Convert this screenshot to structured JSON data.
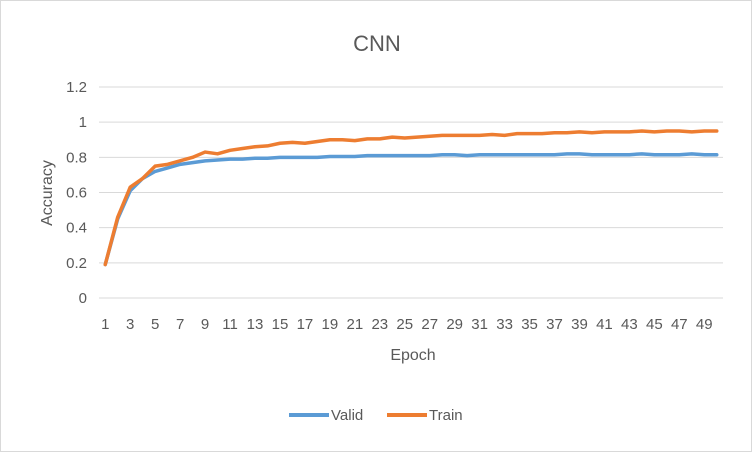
{
  "chart_data": {
    "type": "line",
    "title": "CNN",
    "xlabel": "Epoch",
    "ylabel": "Accuracy",
    "ylim": [
      0,
      1.2
    ],
    "yticks": [
      "0",
      "0.2",
      "0.4",
      "0.6",
      "0.8",
      "1",
      "1.2"
    ],
    "grid": "horizontal",
    "legend_position": "bottom",
    "x": [
      1,
      2,
      3,
      4,
      5,
      6,
      7,
      8,
      9,
      10,
      11,
      12,
      13,
      14,
      15,
      16,
      17,
      18,
      19,
      20,
      21,
      22,
      23,
      24,
      25,
      26,
      27,
      28,
      29,
      30,
      31,
      32,
      33,
      34,
      35,
      36,
      37,
      38,
      39,
      40,
      41,
      42,
      43,
      44,
      45,
      46,
      47,
      48,
      49,
      50
    ],
    "x_tick_labels": [
      "1",
      "3",
      "5",
      "7",
      "9",
      "11",
      "13",
      "15",
      "17",
      "19",
      "21",
      "23",
      "25",
      "27",
      "29",
      "31",
      "33",
      "35",
      "37",
      "39",
      "41",
      "43",
      "45",
      "47",
      "49"
    ],
    "series": [
      {
        "name": "Valid",
        "color": "#5b9bd5",
        "values": [
          0.19,
          0.45,
          0.61,
          0.68,
          0.72,
          0.74,
          0.76,
          0.77,
          0.78,
          0.785,
          0.79,
          0.79,
          0.795,
          0.795,
          0.8,
          0.8,
          0.8,
          0.8,
          0.805,
          0.805,
          0.805,
          0.81,
          0.81,
          0.81,
          0.81,
          0.81,
          0.81,
          0.815,
          0.815,
          0.81,
          0.815,
          0.815,
          0.815,
          0.815,
          0.815,
          0.815,
          0.815,
          0.82,
          0.82,
          0.815,
          0.815,
          0.815,
          0.815,
          0.82,
          0.815,
          0.815,
          0.815,
          0.82,
          0.815,
          0.815
        ]
      },
      {
        "name": "Train",
        "color": "#ed7d31",
        "values": [
          0.19,
          0.46,
          0.63,
          0.68,
          0.75,
          0.76,
          0.78,
          0.8,
          0.83,
          0.82,
          0.84,
          0.85,
          0.86,
          0.865,
          0.88,
          0.885,
          0.88,
          0.89,
          0.9,
          0.9,
          0.895,
          0.905,
          0.905,
          0.915,
          0.91,
          0.915,
          0.92,
          0.925,
          0.925,
          0.925,
          0.925,
          0.93,
          0.925,
          0.935,
          0.935,
          0.935,
          0.94,
          0.94,
          0.945,
          0.94,
          0.945,
          0.945,
          0.945,
          0.95,
          0.945,
          0.95,
          0.95,
          0.945,
          0.95,
          0.95
        ]
      }
    ]
  }
}
